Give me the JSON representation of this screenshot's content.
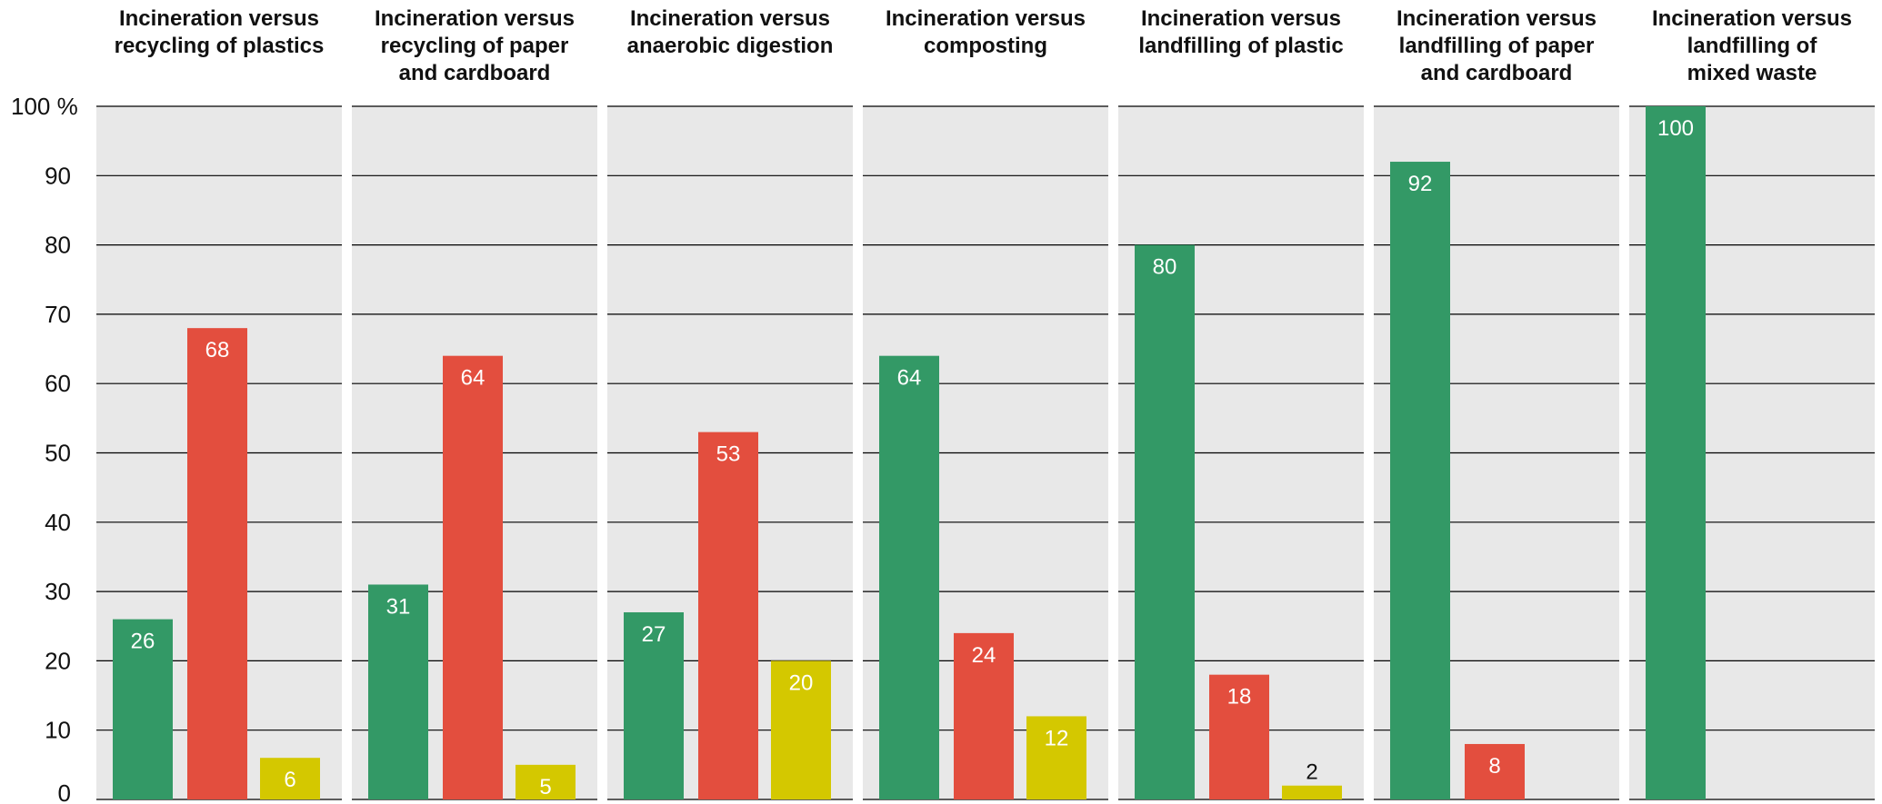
{
  "chart_data": {
    "type": "bar",
    "title": "",
    "ylim": [
      0,
      100
    ],
    "y_ticks": [
      "0",
      "10",
      "20",
      "30",
      "40",
      "50",
      "60",
      "70",
      "80",
      "90",
      "100 %"
    ],
    "grid": true,
    "colors": {
      "panel_background": "#e8e8e8",
      "gridline": "#000000",
      "green": "#339966",
      "red": "#e34e3e",
      "yellow": "#d4c800"
    },
    "panels": [
      {
        "title": [
          "Incineration versus",
          "recycling of plastics"
        ],
        "bars": [
          {
            "value": 26,
            "color": "green",
            "label": "26"
          },
          {
            "value": 68,
            "color": "red",
            "label": "68"
          },
          {
            "value": 6,
            "color": "yellow",
            "label": "6"
          }
        ]
      },
      {
        "title": [
          "Incineration versus",
          "recycling of paper",
          "and cardboard"
        ],
        "bars": [
          {
            "value": 31,
            "color": "green",
            "label": "31"
          },
          {
            "value": 64,
            "color": "red",
            "label": "64"
          },
          {
            "value": 5,
            "color": "yellow",
            "label": "5"
          }
        ]
      },
      {
        "title": [
          "Incineration versus",
          "anaerobic digestion"
        ],
        "bars": [
          {
            "value": 27,
            "color": "green",
            "label": "27"
          },
          {
            "value": 53,
            "color": "red",
            "label": "53"
          },
          {
            "value": 20,
            "color": "yellow",
            "label": "20"
          }
        ]
      },
      {
        "title": [
          "Incineration versus",
          "composting"
        ],
        "bars": [
          {
            "value": 64,
            "color": "green",
            "label": "64"
          },
          {
            "value": 24,
            "color": "red",
            "label": "24"
          },
          {
            "value": 12,
            "color": "yellow",
            "label": "12"
          }
        ]
      },
      {
        "title": [
          "Incineration versus",
          "landfilling of plastic"
        ],
        "bars": [
          {
            "value": 80,
            "color": "green",
            "label": "80"
          },
          {
            "value": 18,
            "color": "red",
            "label": "18"
          },
          {
            "value": 2,
            "color": "yellow",
            "label": "2"
          }
        ]
      },
      {
        "title": [
          "Incineration versus",
          "landfilling of paper",
          "and cardboard"
        ],
        "bars": [
          {
            "value": 92,
            "color": "green",
            "label": "92"
          },
          {
            "value": 8,
            "color": "red",
            "label": "8"
          }
        ]
      },
      {
        "title": [
          "Incineration versus",
          "landfilling of",
          "mixed waste"
        ],
        "bars": [
          {
            "value": 100,
            "color": "green",
            "label": "100"
          }
        ]
      }
    ]
  }
}
